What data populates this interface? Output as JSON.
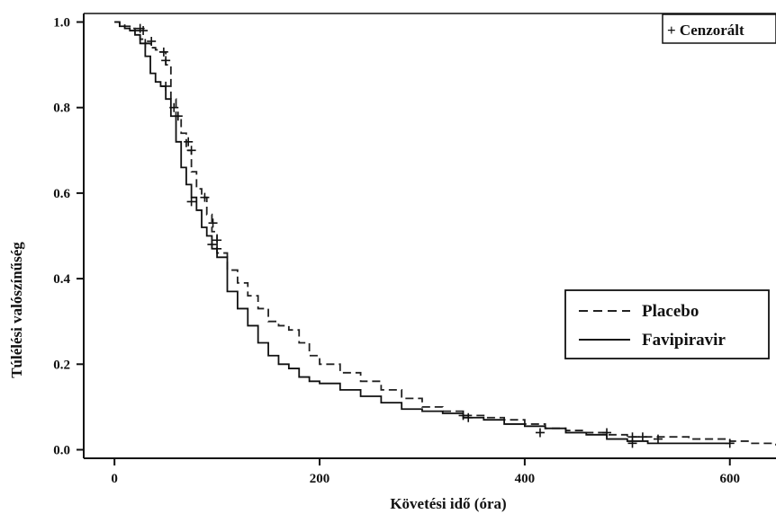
{
  "chart_data": {
    "type": "line",
    "title": "",
    "xlabel": "Követési idő (óra)",
    "ylabel": "Túlélési valószínűség",
    "xlim": [
      -30,
      645
    ],
    "ylim": [
      -0.02,
      1.02
    ],
    "xticks": [
      0,
      200,
      400,
      600
    ],
    "xtick_labels": [
      "0",
      "200",
      "400",
      "600"
    ],
    "yticks": [
      0.0,
      0.2,
      0.4,
      0.6,
      0.8,
      1.0
    ],
    "ytick_labels": [
      "0.0",
      "0.2",
      "0.4",
      "0.6",
      "0.8",
      "1.0"
    ],
    "grid": false,
    "legend_position": "right",
    "censor_legend": "+ Cenzorált",
    "series": [
      {
        "name": "Placebo",
        "style": "dashed",
        "color": "#222222",
        "x": [
          0,
          5,
          10,
          15,
          20,
          25,
          30,
          35,
          40,
          45,
          50,
          55,
          60,
          65,
          70,
          75,
          80,
          85,
          90,
          95,
          100,
          110,
          120,
          130,
          140,
          150,
          160,
          170,
          180,
          190,
          200,
          220,
          240,
          260,
          280,
          300,
          320,
          340,
          360,
          380,
          400,
          420,
          440,
          460,
          480,
          500,
          520,
          540,
          560,
          580,
          600,
          620,
          645
        ],
        "y": [
          1.0,
          0.995,
          0.99,
          0.985,
          0.98,
          0.96,
          0.95,
          0.94,
          0.935,
          0.93,
          0.9,
          0.82,
          0.78,
          0.74,
          0.7,
          0.65,
          0.61,
          0.59,
          0.55,
          0.51,
          0.46,
          0.42,
          0.39,
          0.36,
          0.33,
          0.3,
          0.29,
          0.28,
          0.25,
          0.22,
          0.2,
          0.18,
          0.16,
          0.14,
          0.12,
          0.1,
          0.09,
          0.08,
          0.075,
          0.07,
          0.06,
          0.05,
          0.045,
          0.04,
          0.035,
          0.03,
          0.03,
          0.03,
          0.025,
          0.025,
          0.02,
          0.015,
          0.01
        ]
      },
      {
        "name": "Favipiravir",
        "style": "solid",
        "color": "#111111",
        "x": [
          0,
          5,
          10,
          15,
          20,
          25,
          30,
          35,
          40,
          45,
          50,
          55,
          60,
          65,
          70,
          75,
          80,
          85,
          90,
          95,
          100,
          110,
          120,
          130,
          140,
          150,
          160,
          170,
          180,
          190,
          200,
          220,
          240,
          260,
          280,
          300,
          320,
          340,
          360,
          380,
          400,
          420,
          440,
          460,
          480,
          500,
          520,
          540,
          560,
          580,
          600
        ],
        "y": [
          1.0,
          0.99,
          0.985,
          0.98,
          0.97,
          0.95,
          0.92,
          0.88,
          0.86,
          0.85,
          0.82,
          0.78,
          0.72,
          0.66,
          0.62,
          0.59,
          0.56,
          0.52,
          0.5,
          0.47,
          0.45,
          0.37,
          0.33,
          0.29,
          0.25,
          0.22,
          0.2,
          0.19,
          0.17,
          0.16,
          0.155,
          0.14,
          0.125,
          0.11,
          0.095,
          0.09,
          0.085,
          0.075,
          0.07,
          0.06,
          0.055,
          0.05,
          0.04,
          0.035,
          0.025,
          0.02,
          0.015,
          0.015,
          0.015,
          0.015,
          0.015
        ]
      }
    ],
    "censored": [
      {
        "x": 25,
        "y": 0.985
      },
      {
        "x": 28,
        "y": 0.98
      },
      {
        "x": 36,
        "y": 0.955
      },
      {
        "x": 48,
        "y": 0.93
      },
      {
        "x": 50,
        "y": 0.91
      },
      {
        "x": 58,
        "y": 0.8
      },
      {
        "x": 62,
        "y": 0.78
      },
      {
        "x": 72,
        "y": 0.72
      },
      {
        "x": 75,
        "y": 0.7
      },
      {
        "x": 88,
        "y": 0.59
      },
      {
        "x": 96,
        "y": 0.53
      },
      {
        "x": 100,
        "y": 0.49
      },
      {
        "x": 100,
        "y": 0.47
      },
      {
        "x": 50,
        "y": 0.85
      },
      {
        "x": 30,
        "y": 0.95
      },
      {
        "x": 75,
        "y": 0.58
      },
      {
        "x": 95,
        "y": 0.48
      },
      {
        "x": 340,
        "y": 0.08
      },
      {
        "x": 345,
        "y": 0.075
      },
      {
        "x": 415,
        "y": 0.04
      },
      {
        "x": 480,
        "y": 0.04
      },
      {
        "x": 505,
        "y": 0.03
      },
      {
        "x": 505,
        "y": 0.015
      },
      {
        "x": 515,
        "y": 0.03
      },
      {
        "x": 530,
        "y": 0.025
      },
      {
        "x": 600,
        "y": 0.015
      }
    ]
  }
}
